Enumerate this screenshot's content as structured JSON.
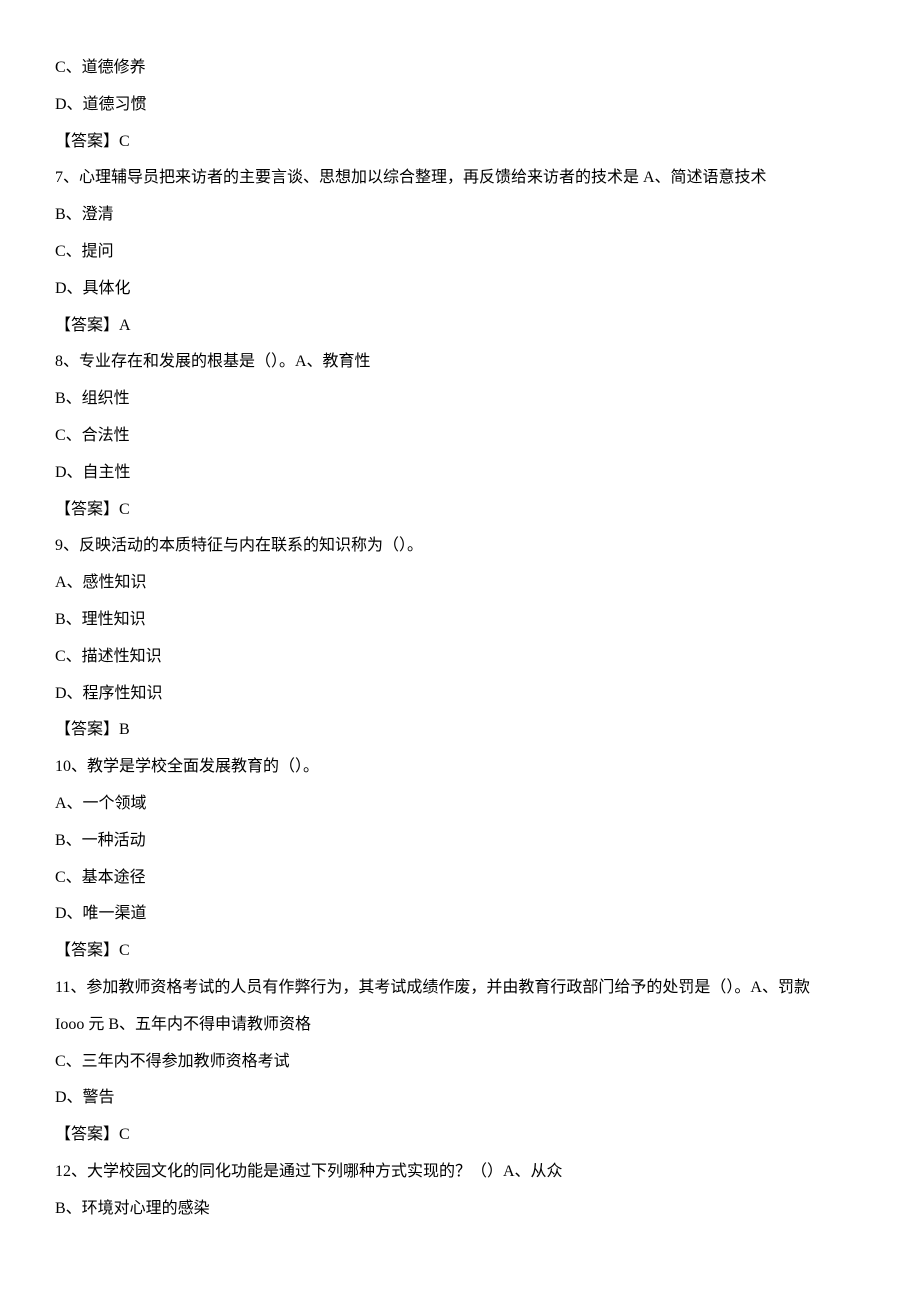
{
  "lines": [
    "C、道德修养",
    "D、道德习惯",
    "【答案】C",
    "7、心理辅导员把来访者的主要言谈、思想加以综合整理，再反馈给来访者的技术是 A、简述语意技术",
    "B、澄清",
    "C、提问",
    "D、具体化",
    "【答案】A",
    "8、专业存在和发展的根基是（）。A、教育性",
    "B、组织性",
    "C、合法性",
    "D、自主性",
    "【答案】C",
    "9、反映活动的本质特征与内在联系的知识称为（）。",
    "A、感性知识",
    "B、理性知识",
    "C、描述性知识",
    "D、程序性知识",
    "【答案】B",
    "10、教学是学校全面发展教育的（）。",
    "A、一个领域",
    "B、一种活动",
    "C、基本途径",
    "D、唯一渠道",
    "【答案】C",
    "11、参加教师资格考试的人员有作弊行为，其考试成绩作废，并由教育行政部门给予的处罚是（）。A、罚款",
    "Iooo 元 B、五年内不得申请教师资格",
    "C、三年内不得参加教师资格考试",
    "D、警告",
    "【答案】C",
    "12、大学校园文化的同化功能是通过下列哪种方式实现的？（）A、从众",
    "B、环境对心理的感染"
  ]
}
